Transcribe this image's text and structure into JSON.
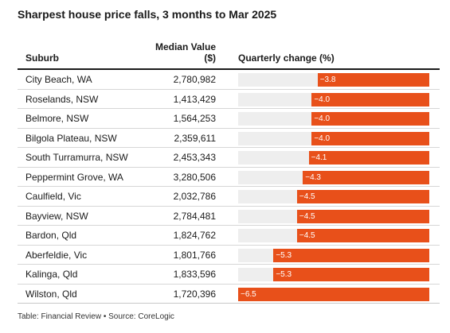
{
  "title": "Sharpest house price falls, 3 months to Mar 2025",
  "headers": {
    "suburb": "Suburb",
    "median_line1": "Median Value",
    "median_line2": "($)",
    "change": "Quarterly change (%)"
  },
  "footer": "Table: Financial Review • Source: CoreLogic",
  "colors": {
    "bar": "#e8501a",
    "track": "#eeeeee"
  },
  "chart_data": {
    "type": "table",
    "columns": [
      "Suburb",
      "Median Value ($)",
      "Quarterly change (%)"
    ],
    "xlim": [
      -6.5,
      0
    ],
    "rows": [
      {
        "suburb": "City Beach, WA",
        "median": "2,780,982",
        "change": -3.8,
        "change_label": "−3.8"
      },
      {
        "suburb": "Roselands, NSW",
        "median": "1,413,429",
        "change": -4.0,
        "change_label": "−4.0"
      },
      {
        "suburb": "Belmore, NSW",
        "median": "1,564,253",
        "change": -4.0,
        "change_label": "−4.0"
      },
      {
        "suburb": "Bilgola Plateau, NSW",
        "median": "2,359,611",
        "change": -4.0,
        "change_label": "−4.0"
      },
      {
        "suburb": "South Turramurra, NSW",
        "median": "2,453,343",
        "change": -4.1,
        "change_label": "−4.1"
      },
      {
        "suburb": "Peppermint Grove, WA",
        "median": "3,280,506",
        "change": -4.3,
        "change_label": "−4.3"
      },
      {
        "suburb": "Caulfield, Vic",
        "median": "2,032,786",
        "change": -4.5,
        "change_label": "−4.5"
      },
      {
        "suburb": "Bayview, NSW",
        "median": "2,784,481",
        "change": -4.5,
        "change_label": "−4.5"
      },
      {
        "suburb": "Bardon, Qld",
        "median": "1,824,762",
        "change": -4.5,
        "change_label": "−4.5"
      },
      {
        "suburb": "Aberfeldie, Vic",
        "median": "1,801,766",
        "change": -5.3,
        "change_label": "−5.3"
      },
      {
        "suburb": "Kalinga, Qld",
        "median": "1,833,596",
        "change": -5.3,
        "change_label": "−5.3"
      },
      {
        "suburb": "Wilston, Qld",
        "median": "1,720,396",
        "change": -6.5,
        "change_label": "−6.5"
      }
    ]
  }
}
